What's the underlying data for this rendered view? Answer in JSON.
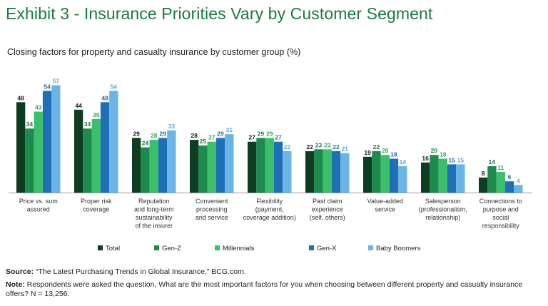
{
  "title": "Exhibit 3 - Insurance Priorities Vary by Customer Segment",
  "subtitle": "Closing factors for property and casualty insurance by customer group (%)",
  "source": {
    "label": "Source:",
    "text": " “The Latest Purchasing Trends in Global Insurance,” BCG.com."
  },
  "note": {
    "label": "Note:",
    "text": " Respondents were asked the question, What are the most important factors for you when choosing between different property and casualty insurance offers? N = 13,256."
  },
  "chart_data": {
    "type": "bar",
    "title": "Closing factors for property and casualty insurance by customer group (%)",
    "xlabel": "",
    "ylabel": "",
    "ylim": [
      0,
      60
    ],
    "grid": false,
    "legend_position": "bottom",
    "categories": [
      [
        "Price vs. sum",
        "assured"
      ],
      [
        "Proper risk",
        "coverage"
      ],
      [
        "Reputation",
        "and long-term",
        "sustainability",
        "of the insurer"
      ],
      [
        "Convenient",
        "processing",
        "and service"
      ],
      [
        "Flexibility",
        "(payment,",
        "coverage addition)"
      ],
      [
        "Past claim",
        "experience",
        "(self, others)"
      ],
      [
        "Value-added",
        "service"
      ],
      [
        "Salesperson",
        "(professionalism,",
        "relationship)"
      ],
      [
        "Connections to",
        "purpose and",
        "social",
        "responsibility"
      ]
    ],
    "series": [
      {
        "name": "Total",
        "color": "#0e3d22",
        "label_color": "#1a1a1a",
        "values": [
          48,
          44,
          29,
          28,
          27,
          22,
          19,
          16,
          8
        ]
      },
      {
        "name": "Gen-Z",
        "color": "#1d8a4e",
        "label_color": "#1d7a46",
        "values": [
          34,
          34,
          24,
          25,
          29,
          23,
          22,
          20,
          14
        ]
      },
      {
        "name": "Millennials",
        "color": "#3cbf6b",
        "label_color": "#33a85c",
        "values": [
          43,
          39,
          28,
          27,
          29,
          23,
          20,
          18,
          11
        ]
      },
      {
        "name": "Gen-X",
        "color": "#1e6fb6",
        "label_color": "#1e6fb6",
        "values": [
          54,
          48,
          29,
          29,
          27,
          22,
          18,
          15,
          6
        ]
      },
      {
        "name": "Baby Boomers",
        "color": "#6ab4e6",
        "label_color": "#5aa9df",
        "values": [
          57,
          54,
          33,
          31,
          22,
          21,
          14,
          15,
          4
        ]
      }
    ]
  }
}
